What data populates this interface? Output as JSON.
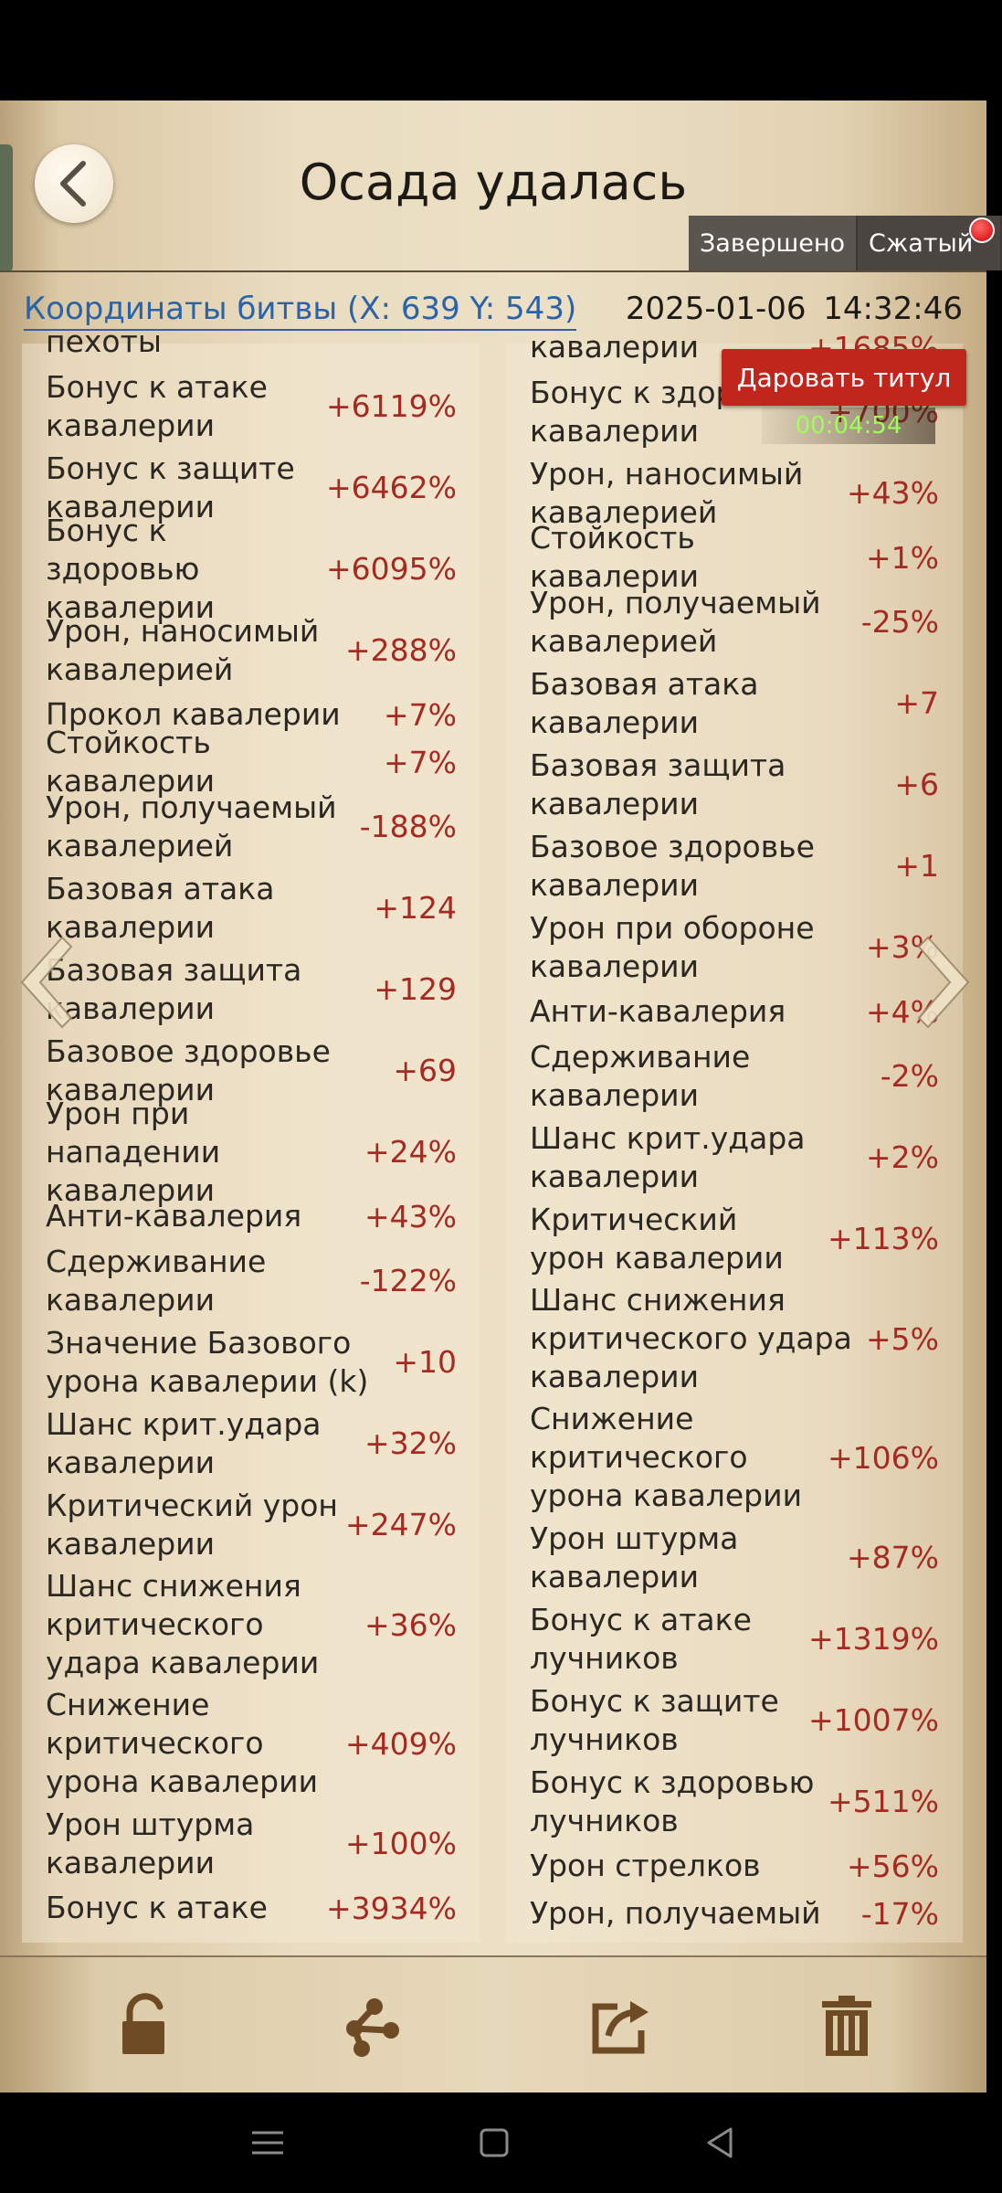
{
  "header": {
    "title": "Осада удалась",
    "filter_tabs": [
      "Завершено",
      "Сжатый"
    ],
    "coords_label": "Координаты битвы (X: 639 Y: 543)",
    "date": "2025-01-06",
    "time": "14:32:46"
  },
  "overlay": {
    "grant_title_label": "Даровать титул",
    "timer": "00:04:54"
  },
  "left_column": [
    {
      "label": "пехоты",
      "value": ""
    },
    {
      "label": "Бонус к атаке кавалерии",
      "value": "+6119%"
    },
    {
      "label": "Бонус к защите кавалерии",
      "value": "+6462%"
    },
    {
      "label": "Бонус к здоровью кавалерии",
      "value": "+6095%"
    },
    {
      "label": "Урон, наносимый кавалерией",
      "value": "+288%"
    },
    {
      "label": "Прокол кавалерии",
      "value": "+7%"
    },
    {
      "label": "Стойкость кавалерии",
      "value": "+7%"
    },
    {
      "label": "Урон, получаемый кавалерией",
      "value": "-188%"
    },
    {
      "label": "Базовая атака кавалерии",
      "value": "+124"
    },
    {
      "label": "Базовая защита кавалерии",
      "value": "+129"
    },
    {
      "label": "Базовое здоровье кавалерии",
      "value": "+69"
    },
    {
      "label": "Урон при нападении кавалерии",
      "value": "+24%"
    },
    {
      "label": "Анти-кавалерия",
      "value": "+43%"
    },
    {
      "label": "Сдерживание кавалерии",
      "value": "-122%"
    },
    {
      "label": "Значение Базового урона кавалерии (k)",
      "value": "+10"
    },
    {
      "label": "Шанс крит.удара кавалерии",
      "value": "+32%"
    },
    {
      "label": "Критический урон кавалерии",
      "value": "+247%"
    },
    {
      "label": "Шанс снижения критического удара кавалерии",
      "value": "+36%"
    },
    {
      "label": "Снижение критического урона кавалерии",
      "value": "+409%"
    },
    {
      "label": "Урон штурма кавалерии",
      "value": "+100%"
    },
    {
      "label": "Бонус к атаке",
      "value": "+3934%"
    }
  ],
  "right_column": [
    {
      "label": "кавалерии",
      "value": "+1685%"
    },
    {
      "label": "Бонус к здоровью кавалерии",
      "value": "+700%"
    },
    {
      "label": "Урон, наносимый кавалерией",
      "value": "+43%"
    },
    {
      "label": "Стойкость кавалерии",
      "value": "+1%"
    },
    {
      "label": "Урон, получаемый кавалерией",
      "value": "-25%"
    },
    {
      "label": "Базовая атака кавалерии",
      "value": "+7"
    },
    {
      "label": "Базовая защита кавалерии",
      "value": "+6"
    },
    {
      "label": "Базовое здоровье кавалерии",
      "value": "+1"
    },
    {
      "label": "Урон при обороне кавалерии",
      "value": "+3%"
    },
    {
      "label": "Анти-кавалерия",
      "value": "+4%"
    },
    {
      "label": "Сдерживание кавалерии",
      "value": "-2%"
    },
    {
      "label": "Шанс крит.удара кавалерии",
      "value": "+2%"
    },
    {
      "label": "Критический урон кавалерии",
      "value": "+113%"
    },
    {
      "label": "Шанс снижения критического удара кавалерии",
      "value": "+5%"
    },
    {
      "label": "Снижение критического урона кавалерии",
      "value": "+106%"
    },
    {
      "label": "Урон штурма кавалерии",
      "value": "+87%"
    },
    {
      "label": "Бонус к атаке лучников",
      "value": "+1319%"
    },
    {
      "label": "Бонус к защите лучников",
      "value": "+1007%"
    },
    {
      "label": "Бонус к здоровью лучников",
      "value": "+511%"
    },
    {
      "label": "Урон стрелков",
      "value": "+56%"
    },
    {
      "label": "Урон, получаемый",
      "value": "-17%"
    }
  ],
  "toolbar": {
    "icons": [
      "lock-icon",
      "share-icon",
      "export-icon",
      "trash-icon"
    ]
  },
  "colors": {
    "value_red": "#a52a22",
    "link_blue": "#2a63a8",
    "grant_button": "#c1261d",
    "timer_green": "#9cff5a",
    "icon_brown": "#6e4a25"
  }
}
